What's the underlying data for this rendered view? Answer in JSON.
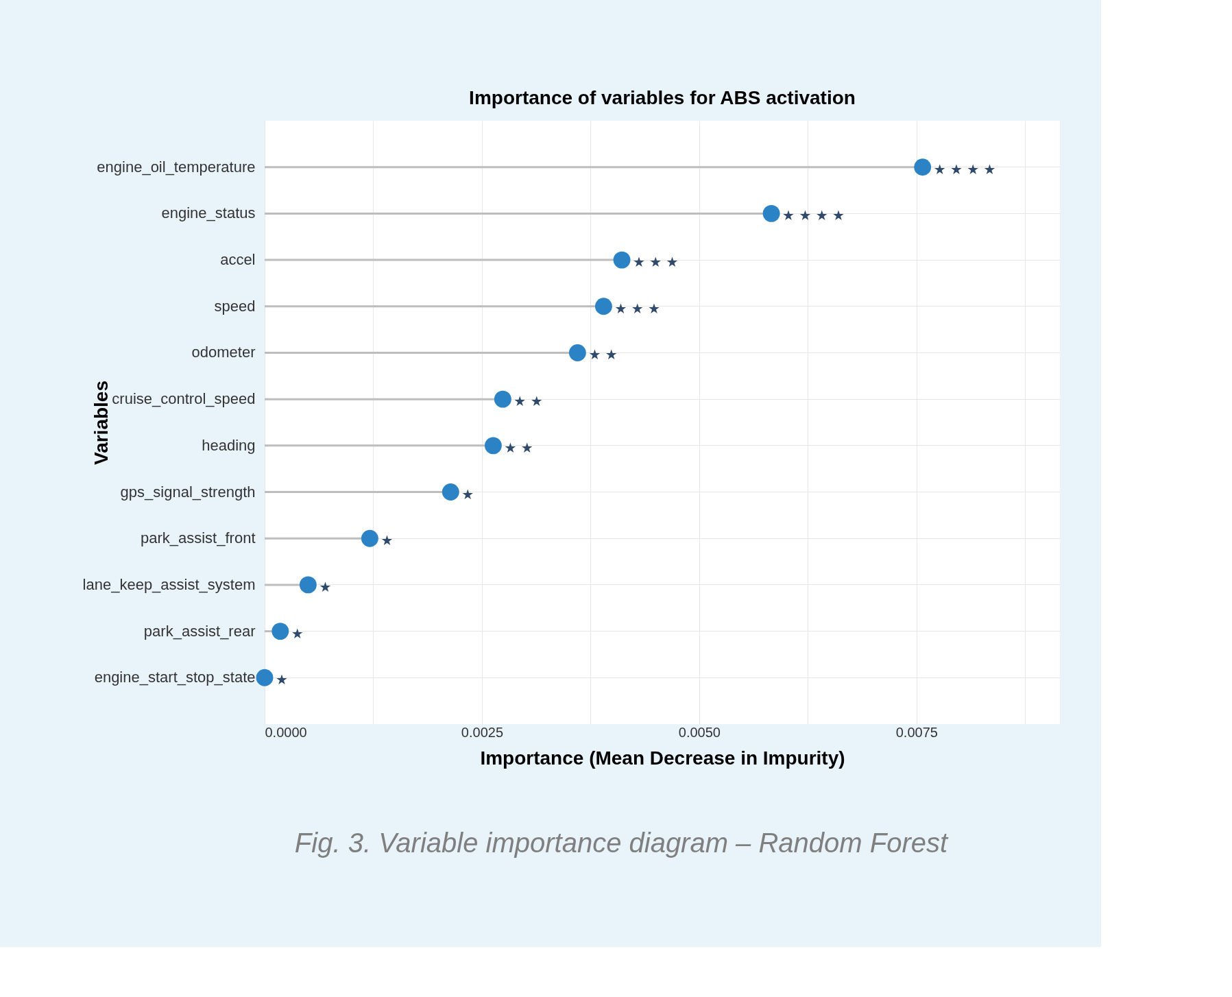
{
  "chart_data": {
    "type": "lollipop",
    "title": "Importance of variables for ABS activation",
    "xlabel": "Importance (Mean Decrease in Impurity)",
    "ylabel": "Variables",
    "categories": [
      "engine_oil_temperature",
      "engine_status",
      "accel",
      "speed",
      "odometer",
      "cruise_control_speed",
      "heading",
      "gps_signal_strength",
      "park_assist_front",
      "lane_keep_assist_system",
      "park_assist_rear",
      "engine_start_stop_state"
    ],
    "values": [
      0.00757,
      0.00583,
      0.00411,
      0.0039,
      0.0036,
      0.00274,
      0.00263,
      0.00214,
      0.00121,
      0.0005,
      0.00018,
      0.0
    ],
    "value_labels": [
      "★ ★ ★ ★",
      "★ ★ ★ ★",
      "★ ★ ★",
      "★ ★ ★",
      "★ ★",
      "★ ★",
      "★ ★",
      "★",
      "★",
      "★",
      "★",
      "★"
    ],
    "color": "#2b83c6",
    "xlim": [
      0,
      0.00915
    ],
    "xticks": [
      {
        "value": 0,
        "label": "0.0000"
      },
      {
        "value": 0.00125,
        "label": null
      },
      {
        "value": 0.0025,
        "label": "0.0025"
      },
      {
        "value": 0.00375,
        "label": null
      },
      {
        "value": 0.005,
        "label": "0.0050"
      },
      {
        "value": 0.00625,
        "label": null
      },
      {
        "value": 0.0075,
        "label": "0.0075"
      },
      {
        "value": 0.00875,
        "label": null
      }
    ],
    "grid": true,
    "orientation": "horizontal",
    "marker": "circle",
    "annotations": [
      "Fig. 3. Variable importance diagram – Random Forest"
    ]
  }
}
